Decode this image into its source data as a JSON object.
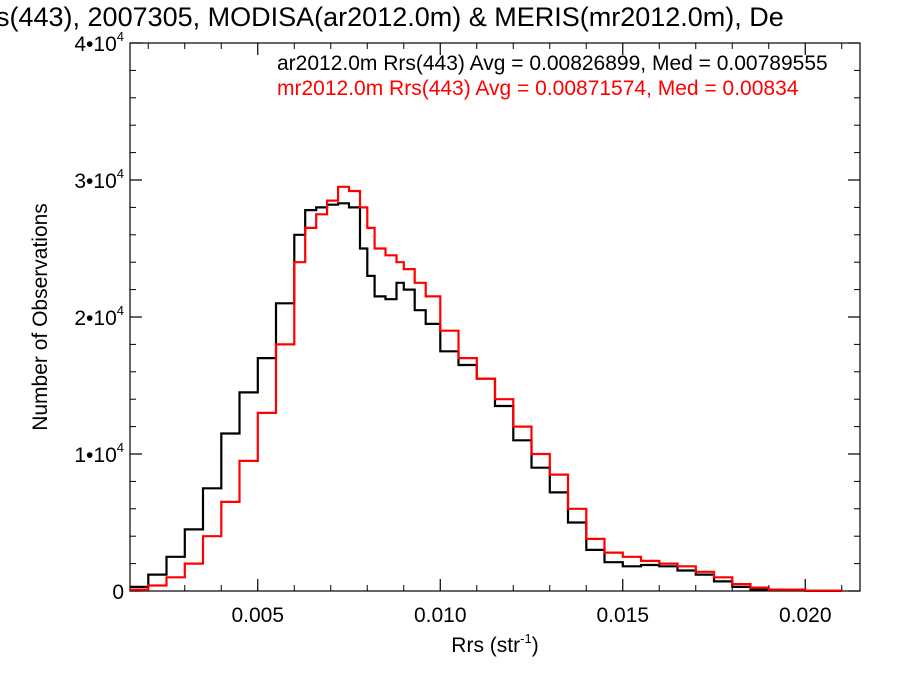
{
  "chart_data": {
    "type": "line",
    "title": "s(443), 2007305, MODISA(ar2012.0m) & MERIS(mr2012.0m), De",
    "xlabel": "Rrs (str",
    "xlabel_sup": "-1",
    "xlabel_close": ")",
    "ylabel": "Number of Observations",
    "xlim": [
      0.0015,
      0.0215
    ],
    "ylim": [
      0,
      40000
    ],
    "x_ticks": [
      {
        "value": 0.005,
        "label": "0.005"
      },
      {
        "value": 0.01,
        "label": "0.010"
      },
      {
        "value": 0.015,
        "label": "0.015"
      },
      {
        "value": 0.02,
        "label": "0.020"
      }
    ],
    "y_ticks": [
      {
        "value": 0,
        "base": "0",
        "exp": ""
      },
      {
        "value": 10000,
        "base": "1•10",
        "exp": "4"
      },
      {
        "value": 20000,
        "base": "2•10",
        "exp": "4"
      },
      {
        "value": 30000,
        "base": "3•10",
        "exp": "4"
      },
      {
        "value": 40000,
        "base": "4•10",
        "exp": "4"
      }
    ],
    "grid": false,
    "legend_position": "top-right",
    "series": [
      {
        "name": "ar2012.0m Rrs(443) Avg = 0.00826899, Med = 0.00789555",
        "color": "#000000",
        "x": [
          0.0015,
          0.002,
          0.0025,
          0.003,
          0.0035,
          0.004,
          0.0045,
          0.005,
          0.0055,
          0.006,
          0.0063,
          0.0066,
          0.0069,
          0.0072,
          0.0075,
          0.0078,
          0.008,
          0.0082,
          0.0085,
          0.0088,
          0.009,
          0.0093,
          0.0096,
          0.01,
          0.0105,
          0.011,
          0.0115,
          0.012,
          0.0125,
          0.013,
          0.0135,
          0.014,
          0.0145,
          0.015,
          0.0155,
          0.016,
          0.0165,
          0.017,
          0.0175,
          0.018,
          0.0185,
          0.019,
          0.02,
          0.021
        ],
        "y": [
          300,
          1200,
          2500,
          4500,
          7500,
          11500,
          14500,
          17000,
          21000,
          26000,
          27800,
          28000,
          28200,
          28300,
          28000,
          25000,
          23000,
          21500,
          21300,
          22500,
          22000,
          20500,
          19500,
          17500,
          16500,
          15500,
          13500,
          11000,
          9000,
          7200,
          5000,
          3000,
          2100,
          1800,
          1900,
          1800,
          1500,
          1200,
          700,
          300,
          100,
          50,
          10,
          0
        ]
      },
      {
        "name": "mr2012.0m Rrs(443) Avg = 0.00871574, Med = 0.00834",
        "color": "#ff0000",
        "x": [
          0.0015,
          0.002,
          0.0025,
          0.003,
          0.0035,
          0.004,
          0.0045,
          0.005,
          0.0055,
          0.006,
          0.0063,
          0.0066,
          0.0069,
          0.0072,
          0.0075,
          0.0078,
          0.008,
          0.0082,
          0.0085,
          0.0088,
          0.009,
          0.0093,
          0.0096,
          0.01,
          0.0105,
          0.011,
          0.0115,
          0.012,
          0.0125,
          0.013,
          0.0135,
          0.014,
          0.0145,
          0.015,
          0.0155,
          0.016,
          0.0165,
          0.017,
          0.0175,
          0.018,
          0.0185,
          0.019,
          0.02,
          0.021
        ],
        "y": [
          100,
          400,
          1000,
          2000,
          4000,
          6500,
          9500,
          13000,
          18000,
          24000,
          26500,
          27500,
          28500,
          29500,
          29200,
          28000,
          26500,
          25000,
          24500,
          24000,
          23500,
          22500,
          21500,
          19000,
          17000,
          15500,
          14000,
          12000,
          10000,
          8500,
          6000,
          3800,
          2800,
          2500,
          2200,
          2000,
          1800,
          1400,
          1000,
          500,
          250,
          100,
          20,
          0
        ]
      }
    ]
  }
}
